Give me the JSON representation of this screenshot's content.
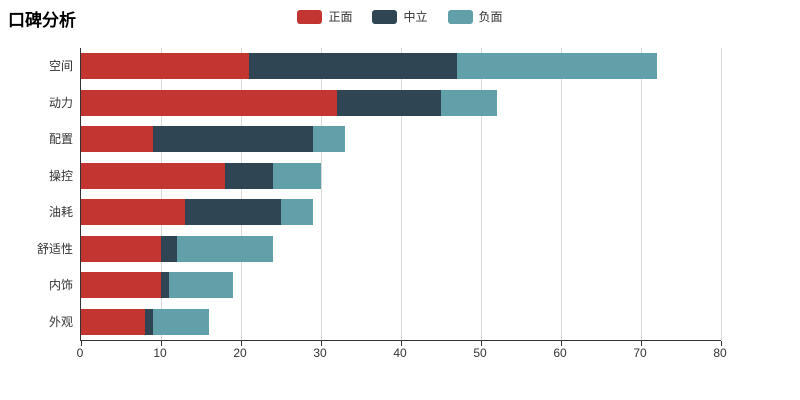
{
  "chart_data": {
    "type": "bar",
    "orientation": "horizontal",
    "stacked": true,
    "title": "口碑分析",
    "categories": [
      "空间",
      "动力",
      "配置",
      "操控",
      "油耗",
      "舒适性",
      "内饰",
      "外观"
    ],
    "series": [
      {
        "name": "正面",
        "color": "#c23531",
        "values": [
          21,
          32,
          9,
          18,
          13,
          10,
          10,
          8
        ]
      },
      {
        "name": "中立",
        "color": "#2f4554",
        "values": [
          26,
          13,
          20,
          6,
          12,
          2,
          1,
          1
        ]
      },
      {
        "name": "负面",
        "color": "#61a0a8",
        "values": [
          25,
          7,
          4,
          6,
          4,
          12,
          8,
          7
        ]
      }
    ],
    "xlabel": "",
    "ylabel": "",
    "xlim": [
      0,
      80
    ],
    "xticks": [
      0,
      10,
      20,
      30,
      40,
      50,
      60,
      70,
      80
    ],
    "grid": true,
    "legend_position": "top-center",
    "background": "#ffffff"
  }
}
